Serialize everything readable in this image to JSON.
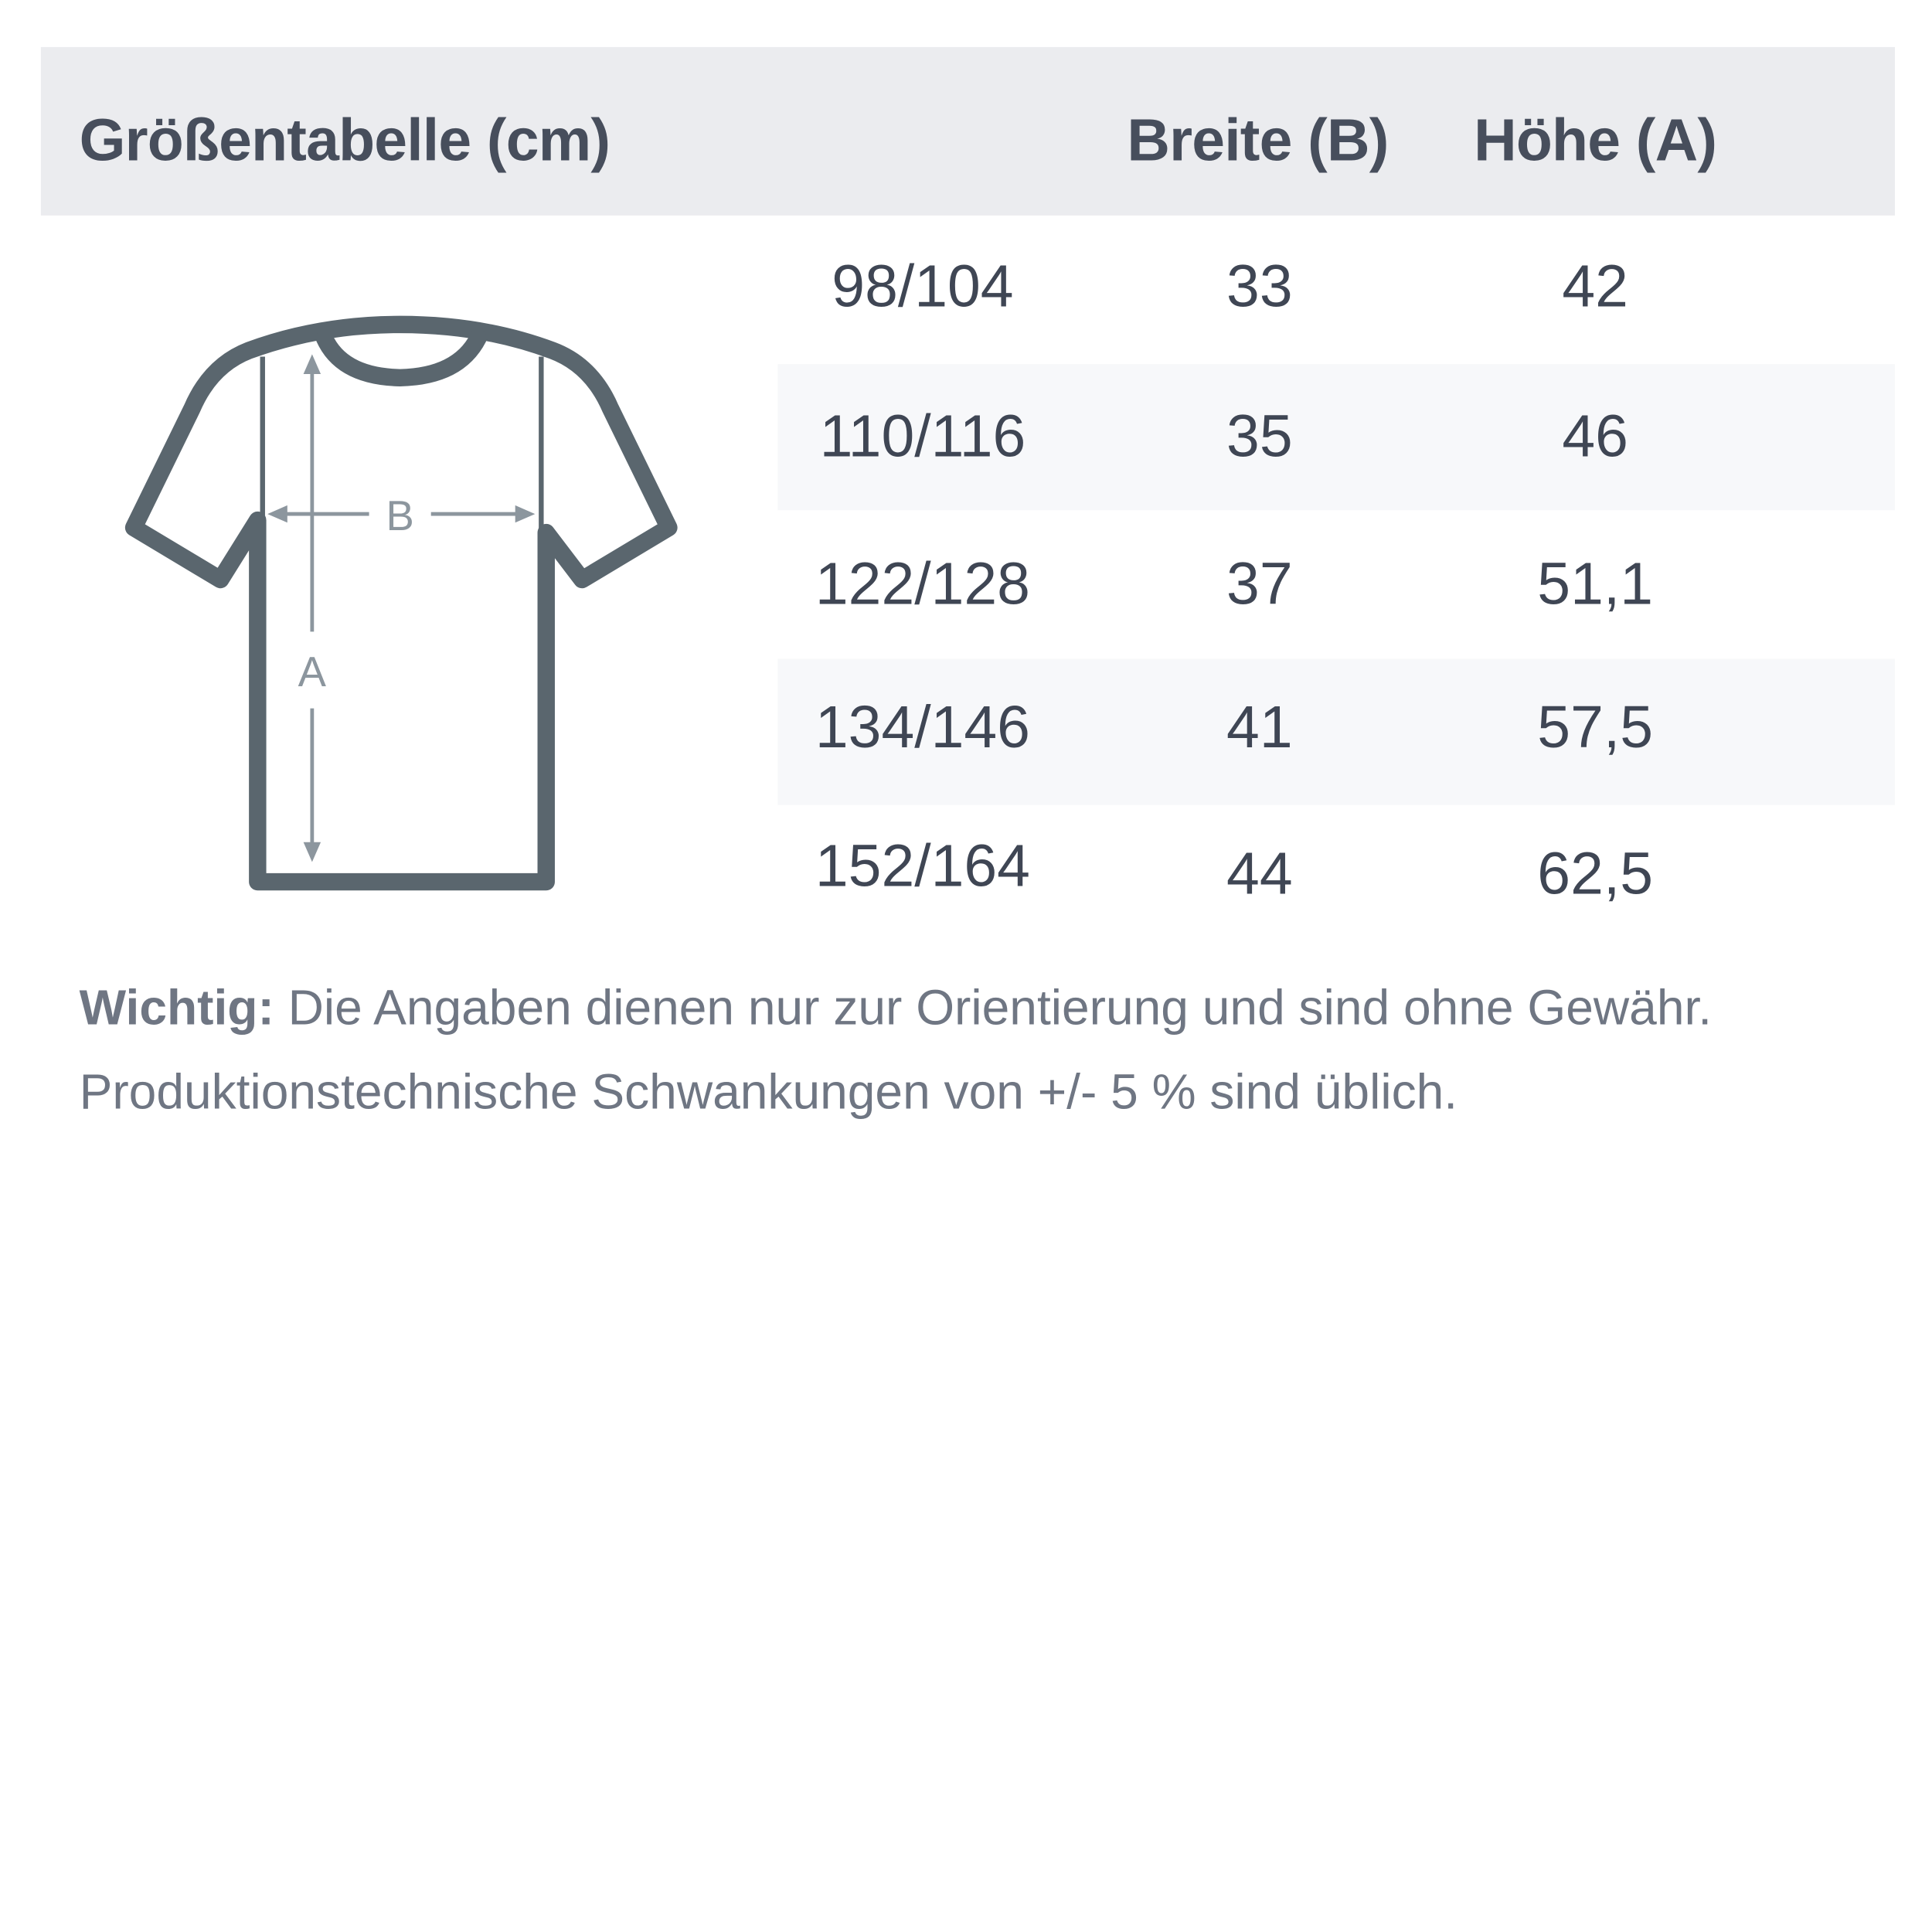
{
  "header": {
    "title": "Größentabelle (cm)",
    "col_width": "Breite (B)",
    "col_height": "Höhe (A)"
  },
  "rows": [
    {
      "size": "98/104",
      "width": "33",
      "height": "42"
    },
    {
      "size": "110/116",
      "width": "35",
      "height": "46"
    },
    {
      "size": "122/128",
      "width": "37",
      "height": "51,1"
    },
    {
      "size": "134/146",
      "width": "41",
      "height": "57,5"
    },
    {
      "size": "152/164",
      "width": "44",
      "height": "62,5"
    }
  ],
  "diagram": {
    "label_width": "B",
    "label_height": "A"
  },
  "note": {
    "bold": "Wichtig:",
    "line1": "Die Angaben dienen nur zur Orientierung und sind ohne Gewähr.",
    "line2": "Produktionstechnische Schwankungen von +/- 5 % sind üblich."
  },
  "colors": {
    "header_bg": "#ebecef",
    "stripe_bg": "#f7f8fa",
    "shirt": "#5a666e",
    "arrow": "#8c969e",
    "text": "#3f4654"
  }
}
